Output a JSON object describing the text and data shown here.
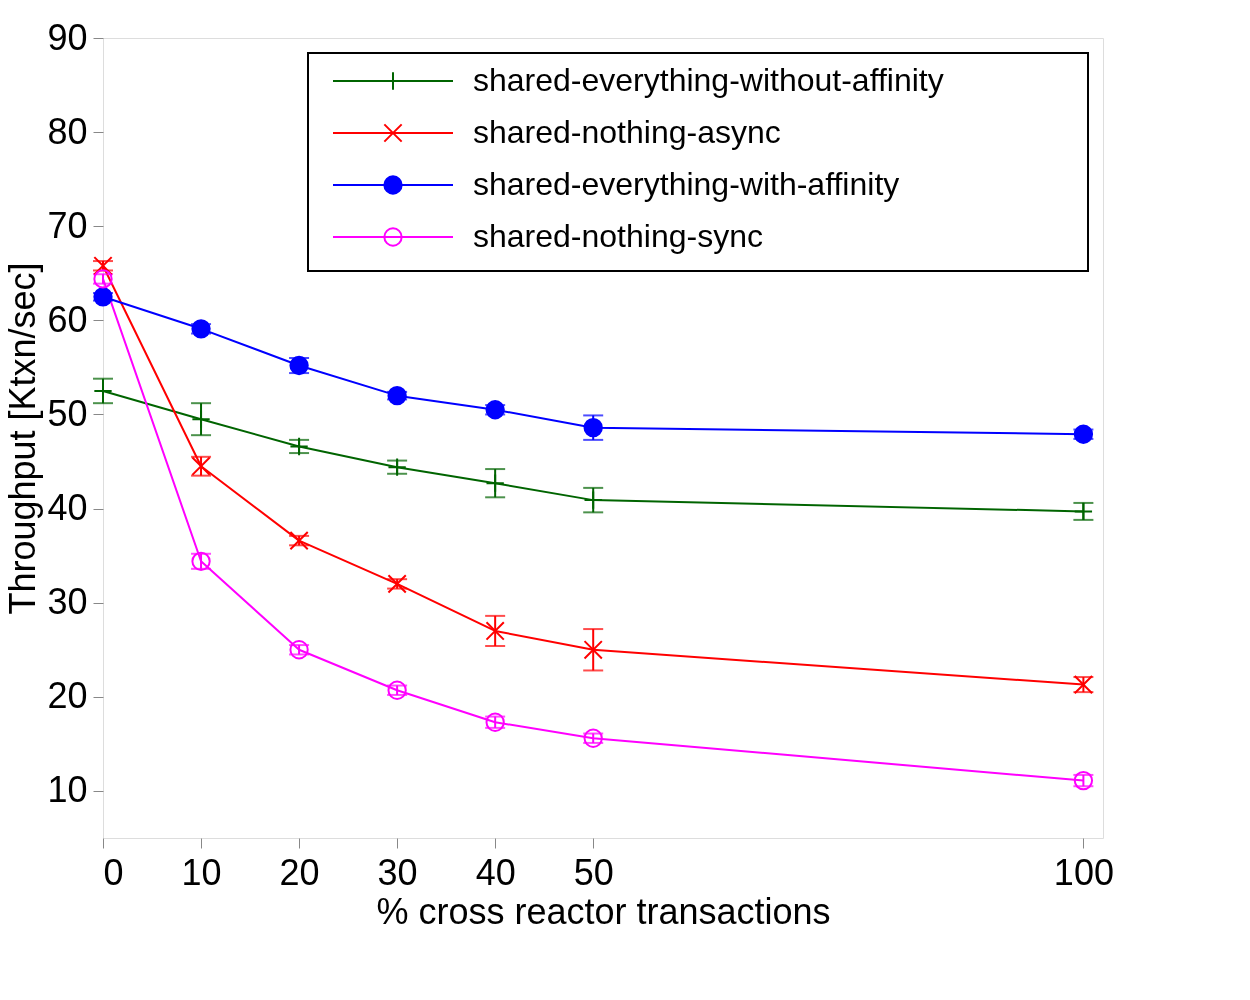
{
  "chart_data": {
    "type": "line",
    "xlabel": "% cross reactor transactions",
    "ylabel": "Throughput [Ktxn/sec]",
    "x": [
      0,
      10,
      20,
      30,
      40,
      50,
      100
    ],
    "series": [
      {
        "name": "shared-everything-without-affinity",
        "color": "#006400",
        "marker": "cross",
        "values": [
          52.5,
          49.5,
          46.6,
          44.4,
          42.7,
          40.9,
          39.7
        ],
        "errors": [
          1.3,
          1.7,
          0.7,
          0.7,
          1.5,
          1.3,
          0.9
        ]
      },
      {
        "name": "shared-nothing-async",
        "color": "#ff0000",
        "marker": "x",
        "values": [
          65.8,
          44.5,
          36.6,
          32.0,
          27.0,
          25.0,
          21.3
        ],
        "errors": [
          0.5,
          1.0,
          0.5,
          0.5,
          1.6,
          2.2,
          0.8
        ]
      },
      {
        "name": "shared-everything-with-affinity",
        "color": "#0000ff",
        "marker": "circle",
        "values": [
          62.5,
          59.1,
          55.2,
          52.0,
          50.5,
          48.6,
          47.9
        ],
        "errors": [
          0.4,
          0.5,
          0.8,
          0.4,
          0.5,
          1.3,
          0.5
        ]
      },
      {
        "name": "shared-nothing-sync",
        "color": "#ff00ff",
        "marker": "circle-open",
        "values": [
          64.4,
          34.4,
          25.0,
          20.7,
          17.3,
          15.6,
          11.1
        ],
        "errors": [
          0.5,
          0.8,
          0.5,
          0.5,
          0.6,
          0.5,
          0.6
        ]
      }
    ],
    "xlim": [
      0,
      102
    ],
    "xticks": [
      0,
      10,
      20,
      30,
      40,
      50,
      100
    ],
    "ylim": [
      5,
      90
    ],
    "yticks": [
      10,
      20,
      30,
      40,
      50,
      60,
      70,
      80,
      90
    ],
    "grid": false,
    "legend": "top right",
    "line_style": "solid"
  }
}
